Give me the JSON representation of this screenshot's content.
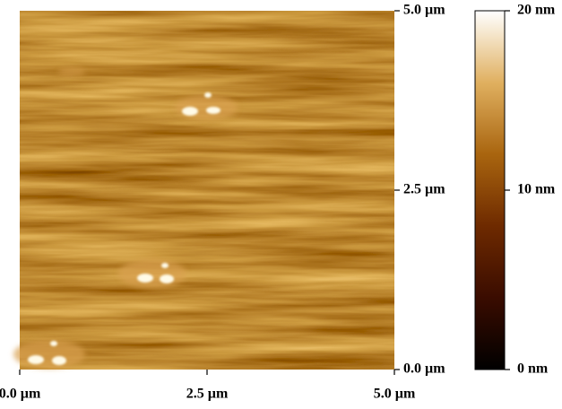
{
  "chart_data": {
    "type": "heatmap",
    "xlim": [
      0,
      5
    ],
    "ylim": [
      0,
      5
    ],
    "xticks": [
      {
        "value": 0,
        "label": "0.0 µm"
      },
      {
        "value": 2.5,
        "label": "2.5 µm"
      },
      {
        "value": 5,
        "label": "5.0 µm"
      }
    ],
    "yticks": [
      {
        "value": 0,
        "label": "0.0 µm"
      },
      {
        "value": 2.5,
        "label": "2.5 µm"
      },
      {
        "value": 5,
        "label": "5.0 µm"
      }
    ],
    "colorbar": {
      "lim": [
        0,
        20
      ],
      "ticks": [
        {
          "value": 0,
          "label": "0 nm"
        },
        {
          "value": 10,
          "label": "10 nm"
        },
        {
          "value": 20,
          "label": "20 nm"
        }
      ],
      "colors": [
        "#000000",
        "#3a0c00",
        "#6e2a00",
        "#a9650f",
        "#e0b060",
        "#ffffff"
      ]
    }
  }
}
